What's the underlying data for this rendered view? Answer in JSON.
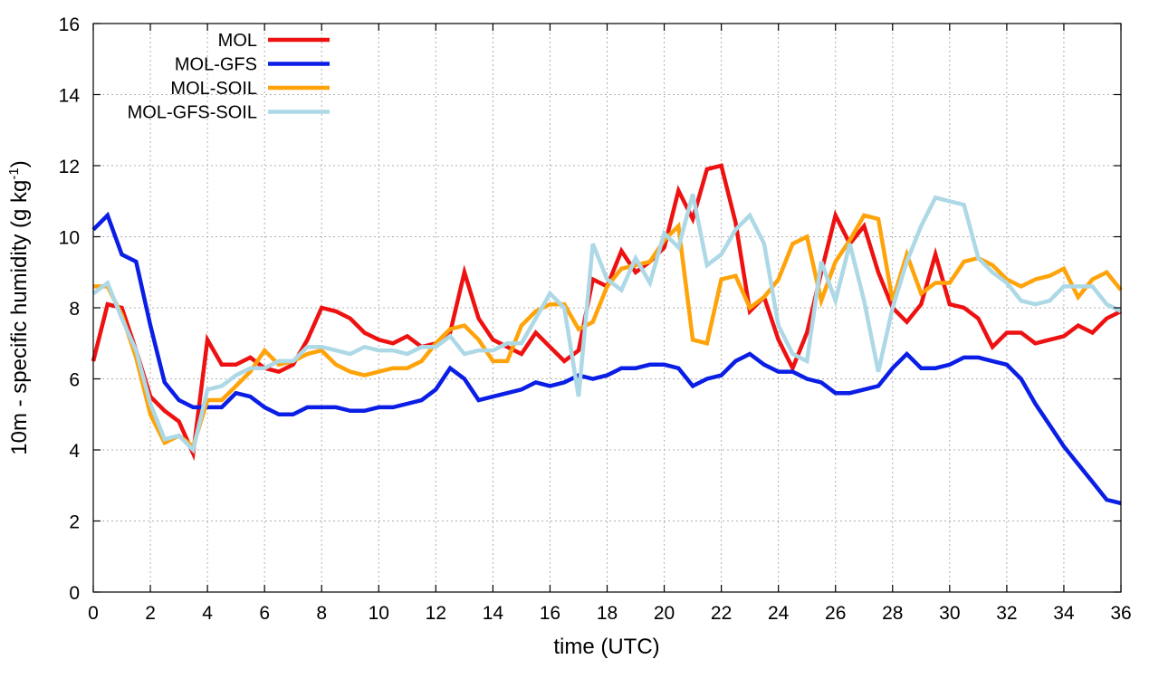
{
  "chart_data": {
    "type": "line",
    "title": "",
    "xlabel": "time (UTC)",
    "ylabel_main": "10m - specific humidity (g kg",
    "ylabel_sup": "-1",
    "ylabel_end": ")",
    "xlim": [
      0,
      36
    ],
    "ylim": [
      0,
      16
    ],
    "xticks": [
      0,
      2,
      4,
      6,
      8,
      10,
      12,
      14,
      16,
      18,
      20,
      22,
      24,
      26,
      28,
      30,
      32,
      34,
      36
    ],
    "yticks": [
      0,
      2,
      4,
      6,
      8,
      10,
      12,
      14,
      16
    ],
    "grid": true,
    "legend_position": "top-left",
    "x": [
      0,
      0.5,
      1,
      1.5,
      2,
      2.5,
      3,
      3.5,
      4,
      4.5,
      5,
      5.5,
      6,
      6.5,
      7,
      7.5,
      8,
      8.5,
      9,
      9.5,
      10,
      10.5,
      11,
      11.5,
      12,
      12.5,
      13,
      13.5,
      14,
      14.5,
      15,
      15.5,
      16,
      16.5,
      17,
      17.5,
      18,
      18.5,
      19,
      19.5,
      20,
      20.5,
      21,
      21.5,
      22,
      22.5,
      23,
      23.5,
      24,
      24.5,
      25,
      25.5,
      26,
      26.5,
      27,
      27.5,
      28,
      28.5,
      29,
      29.5,
      30,
      30.5,
      31,
      31.5,
      32,
      32.5,
      33,
      33.5,
      34,
      34.5,
      35,
      35.5,
      36
    ],
    "series": [
      {
        "name": "MOL",
        "color": "#ee1111",
        "values": [
          6.5,
          8.1,
          8.0,
          6.8,
          5.5,
          5.1,
          4.8,
          3.9,
          7.1,
          6.4,
          6.4,
          6.6,
          6.3,
          6.2,
          6.4,
          7.1,
          8.0,
          7.9,
          7.7,
          7.3,
          7.1,
          7.0,
          7.2,
          6.9,
          7.0,
          7.3,
          9.0,
          7.7,
          7.1,
          6.9,
          6.7,
          7.3,
          6.9,
          6.5,
          6.8,
          8.8,
          8.6,
          9.6,
          9.0,
          9.3,
          9.7,
          11.3,
          10.5,
          11.9,
          12.0,
          10.4,
          7.9,
          8.3,
          7.1,
          6.3,
          7.3,
          9.0,
          10.6,
          9.8,
          10.3,
          9.0,
          8.0,
          7.6,
          8.1,
          9.5,
          8.1,
          8.0,
          7.7,
          6.9,
          7.3,
          7.3,
          7.0,
          7.1,
          7.2,
          7.5,
          7.3,
          7.7,
          7.9
        ]
      },
      {
        "name": "MOL-GFS",
        "color": "#0a1ee6",
        "values": [
          10.2,
          10.6,
          9.5,
          9.3,
          7.5,
          5.9,
          5.4,
          5.2,
          5.2,
          5.2,
          5.6,
          5.5,
          5.2,
          5.0,
          5.0,
          5.2,
          5.2,
          5.2,
          5.1,
          5.1,
          5.2,
          5.2,
          5.3,
          5.4,
          5.7,
          6.3,
          6.0,
          5.4,
          5.5,
          5.6,
          5.7,
          5.9,
          5.8,
          5.9,
          6.1,
          6.0,
          6.1,
          6.3,
          6.3,
          6.4,
          6.4,
          6.3,
          5.8,
          6.0,
          6.1,
          6.5,
          6.7,
          6.4,
          6.2,
          6.2,
          6.0,
          5.9,
          5.6,
          5.6,
          5.7,
          5.8,
          6.3,
          6.7,
          6.3,
          6.3,
          6.4,
          6.6,
          6.6,
          6.5,
          6.4,
          6.0,
          5.3,
          4.7,
          4.1,
          3.6,
          3.1,
          2.6,
          2.5
        ]
      },
      {
        "name": "MOL-SOIL",
        "color": "#ffa30a",
        "values": [
          8.6,
          8.6,
          7.8,
          6.6,
          5.0,
          4.2,
          4.4,
          4.1,
          5.4,
          5.4,
          5.8,
          6.2,
          6.8,
          6.4,
          6.5,
          6.7,
          6.8,
          6.4,
          6.2,
          6.1,
          6.2,
          6.3,
          6.3,
          6.5,
          7.0,
          7.4,
          7.5,
          7.1,
          6.5,
          6.5,
          7.5,
          7.9,
          8.1,
          8.1,
          7.4,
          7.6,
          8.6,
          9.1,
          9.2,
          9.3,
          9.9,
          10.3,
          7.1,
          7.0,
          8.8,
          8.9,
          8.0,
          8.3,
          8.8,
          9.8,
          10.0,
          8.2,
          9.3,
          9.9,
          10.6,
          10.5,
          8.2,
          9.5,
          8.4,
          8.7,
          8.7,
          9.3,
          9.4,
          9.2,
          8.8,
          8.6,
          8.8,
          8.9,
          9.1,
          8.3,
          8.8,
          9.0,
          8.5
        ]
      },
      {
        "name": "MOL-GFS-SOIL",
        "color": "#add8e6",
        "values": [
          8.4,
          8.7,
          7.7,
          6.8,
          5.3,
          4.3,
          4.4,
          4.0,
          5.7,
          5.8,
          6.1,
          6.3,
          6.3,
          6.5,
          6.5,
          6.9,
          6.9,
          6.8,
          6.7,
          6.9,
          6.8,
          6.8,
          6.7,
          6.9,
          6.9,
          7.2,
          6.7,
          6.8,
          6.8,
          7.0,
          7.0,
          7.7,
          8.4,
          8.0,
          5.5,
          9.8,
          8.8,
          8.5,
          9.4,
          8.7,
          10.1,
          9.7,
          11.2,
          9.2,
          9.5,
          10.2,
          10.6,
          9.8,
          7.5,
          6.7,
          6.5,
          9.3,
          8.2,
          9.8,
          8.2,
          6.2,
          8.0,
          9.3,
          10.3,
          11.1,
          11.0,
          10.9,
          9.4,
          9.0,
          8.7,
          8.2,
          8.1,
          8.2,
          8.6,
          8.6,
          8.6,
          8.1,
          7.9
        ]
      }
    ]
  }
}
